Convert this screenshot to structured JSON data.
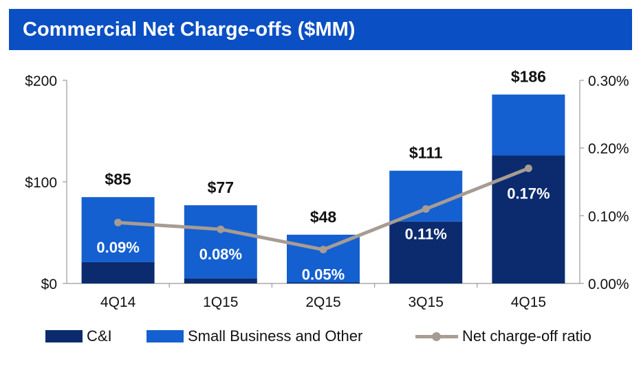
{
  "title": "Commercial Net Charge-offs ($MM)",
  "colors": {
    "header": "#0a4fc4",
    "c_and_i": "#0b2b6e",
    "small_business": "#1560d0",
    "ratio_line": "#a79c93"
  },
  "legend": {
    "c_and_i": "C&I",
    "small_business": "Small Business and Other",
    "ratio": "Net charge-off ratio"
  },
  "chart_data": {
    "type": "bar",
    "stacked": true,
    "categories": [
      "4Q14",
      "1Q15",
      "2Q15",
      "3Q15",
      "4Q15"
    ],
    "series": [
      {
        "name": "C&I",
        "values": [
          21,
          5,
          1,
          61,
          126
        ]
      },
      {
        "name": "Small Business and Other",
        "values": [
          64,
          72,
          47,
          50,
          60
        ]
      }
    ],
    "totals": [
      85,
      77,
      48,
      111,
      186
    ],
    "total_labels": [
      "$85",
      "$77",
      "$48",
      "$111",
      "$186"
    ],
    "line_series": {
      "name": "Net charge-off ratio",
      "axis": "right",
      "values": [
        0.09,
        0.08,
        0.05,
        0.11,
        0.17
      ],
      "labels": [
        "0.09%",
        "0.08%",
        "0.05%",
        "0.11%",
        "0.17%"
      ]
    },
    "y_left": {
      "ylim": [
        0,
        200
      ],
      "ticks": [
        0,
        100,
        200
      ],
      "tick_labels": [
        "$0",
        "$100",
        "$200"
      ]
    },
    "y_right": {
      "ylim": [
        0,
        0.3
      ],
      "ticks": [
        0,
        0.1,
        0.2,
        0.3
      ],
      "tick_labels": [
        "0.00%",
        "0.10%",
        "0.20%",
        "0.30%"
      ]
    },
    "grid": false,
    "legend_position": "bottom"
  }
}
